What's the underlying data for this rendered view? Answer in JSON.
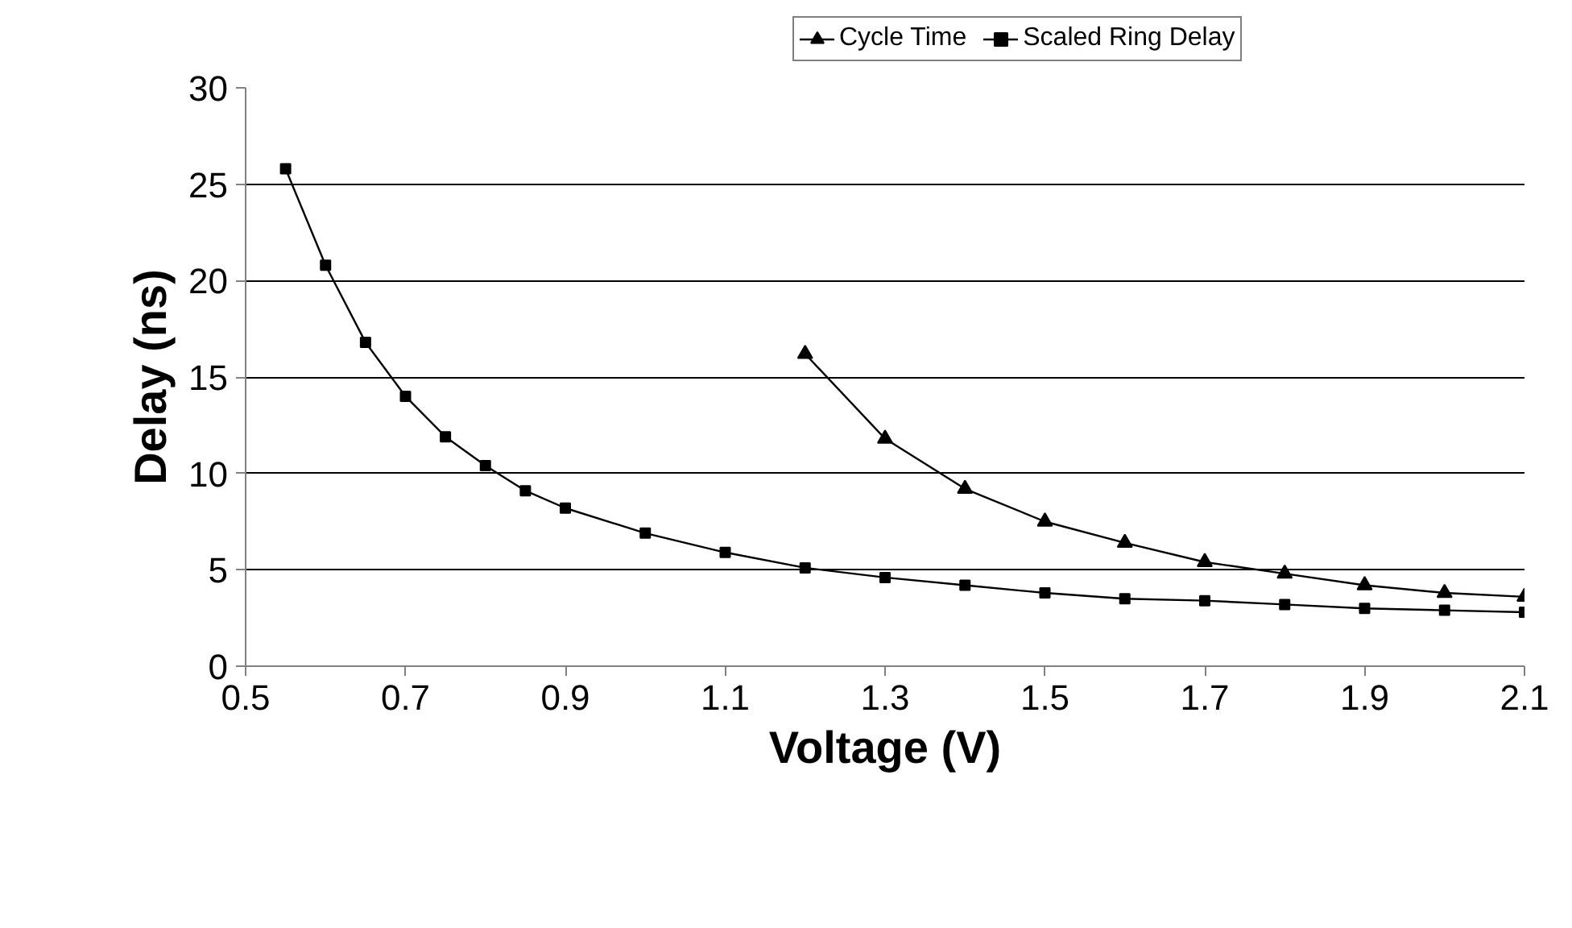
{
  "chart_data": {
    "type": "line",
    "xlabel": "Voltage (V)",
    "ylabel": "Delay (ns)",
    "xlim": [
      0.5,
      2.1
    ],
    "xticks": [
      0.5,
      0.7,
      0.9,
      1.1,
      1.3,
      1.5,
      1.7,
      1.9,
      2.1
    ],
    "ylim": [
      0,
      30
    ],
    "yticks": [
      0,
      5,
      10,
      15,
      20,
      25,
      30
    ],
    "grid": "y",
    "legend": "top",
    "series": [
      {
        "name": "Cycle Time",
        "color": "#000000",
        "marker": "triangle",
        "x": [
          1.2,
          1.3,
          1.4,
          1.5,
          1.6,
          1.7,
          1.8,
          1.9,
          2.0,
          2.1
        ],
        "values": [
          16.2,
          11.8,
          9.2,
          7.5,
          6.4,
          5.4,
          4.8,
          4.2,
          3.8,
          3.6
        ]
      },
      {
        "name": "Scaled Ring Delay",
        "color": "#000000",
        "marker": "square",
        "x": [
          0.55,
          0.6,
          0.65,
          0.7,
          0.75,
          0.8,
          0.85,
          0.9,
          1.0,
          1.1,
          1.2,
          1.3,
          1.4,
          1.5,
          1.6,
          1.7,
          1.8,
          1.9,
          2.0,
          2.1
        ],
        "values": [
          25.8,
          20.8,
          16.8,
          14.0,
          11.9,
          10.4,
          9.1,
          8.2,
          6.9,
          5.9,
          5.1,
          4.6,
          4.2,
          3.8,
          3.5,
          3.4,
          3.2,
          3.0,
          2.9,
          2.8
        ]
      }
    ]
  }
}
